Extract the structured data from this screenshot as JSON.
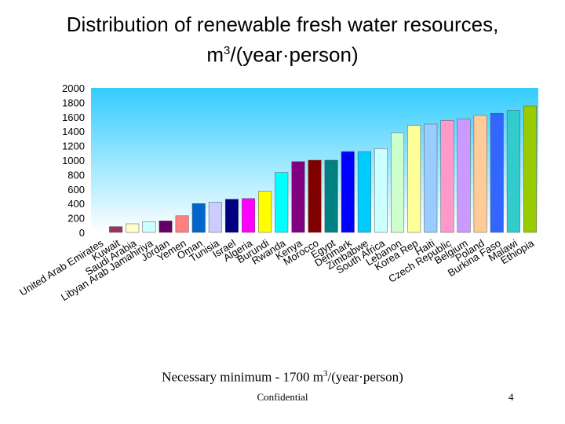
{
  "title": {
    "line1": "Distribution of renewable fresh water resources,",
    "line2_pre": "m",
    "line2_sup": "3",
    "line2_post": "/(year·person)"
  },
  "footnote": {
    "pre": "Necessary minimum - 1700 m",
    "sup": "3",
    "post": "/(year·person)"
  },
  "footer": {
    "confidential": "Confidential",
    "page_number": "4"
  },
  "colors": {
    "plot_gradient_top": "#33ccff",
    "plot_gradient_bottom": "#ffffff"
  },
  "chart_data": {
    "type": "bar",
    "ylim": [
      0,
      2000
    ],
    "yticks": [
      0,
      200,
      400,
      600,
      800,
      1000,
      1200,
      1400,
      1600,
      1800,
      2000
    ],
    "grid": false,
    "categories": [
      "United Arab Emirates",
      "Kuwait",
      "Saudi Arabia",
      "Libyan Arab Jamahiriya",
      "Jordan",
      "Yemen",
      "Oman",
      "Tunisia",
      "Israel",
      "Algeria",
      "Burundi",
      "Rwanda",
      "Kenya",
      "Morocco",
      "Egypt",
      "Denmark",
      "Zimbabwe",
      "South Africa",
      "Lebanon",
      "Korea Rep",
      "Haiti",
      "Czech Republic",
      "Belgium",
      "Poland",
      "Burkina Faso",
      "Malawi",
      "Ethiopia"
    ],
    "values": [
      0,
      80,
      120,
      150,
      160,
      230,
      400,
      420,
      460,
      470,
      570,
      830,
      980,
      1000,
      1000,
      1120,
      1120,
      1160,
      1380,
      1480,
      1500,
      1550,
      1570,
      1620,
      1650,
      1690,
      1750
    ],
    "bar_colors": [
      "#ffffff",
      "#993366",
      "#ffffcc",
      "#ccffff",
      "#660066",
      "#ff8080",
      "#0066cc",
      "#ccccff",
      "#000080",
      "#ff00ff",
      "#ffff00",
      "#00ffff",
      "#800080",
      "#800000",
      "#008080",
      "#0000ff",
      "#00ccff",
      "#ccffff",
      "#ccffcc",
      "#ffff99",
      "#99ccff",
      "#ff99cc",
      "#cc99ff",
      "#ffcc99",
      "#3366ff",
      "#33cccc",
      "#99cc00"
    ]
  }
}
